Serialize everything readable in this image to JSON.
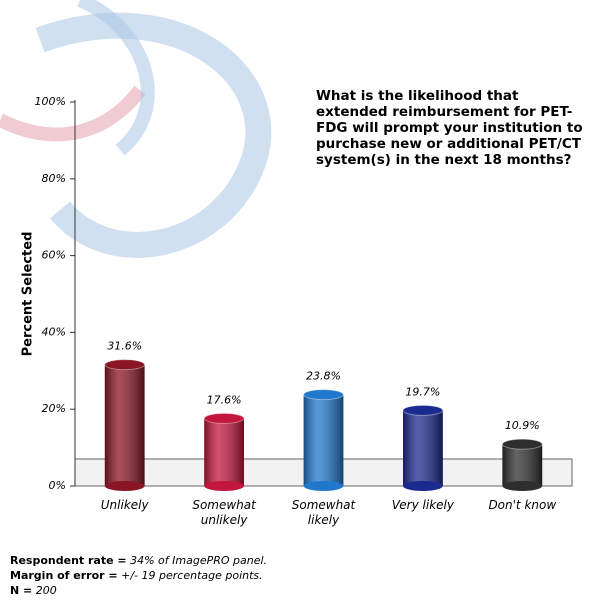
{
  "chart_data": {
    "type": "bar",
    "title": "What is the likelihood that extended reimbursement for PET-FDG will prompt your institution to purchase new or additional PET/CT system(s) in the next 18 months?",
    "y_label": "Percent Selected",
    "categories": [
      "Unlikely",
      "Somewhat unlikely",
      "Somewhat likely",
      "Very likely",
      "Don't know"
    ],
    "values": [
      31.6,
      17.6,
      23.8,
      19.7,
      10.9
    ],
    "value_labels": [
      "31.6%",
      "17.6%",
      "23.8%",
      "19.7%",
      "10.9%"
    ],
    "colors": [
      "#8a1525",
      "#c3153d",
      "#1f78cc",
      "#1b2a8e",
      "#2e2e2e"
    ],
    "ylim": [
      0,
      100
    ],
    "yticks": [
      {
        "value": 0,
        "label": "0%"
      },
      {
        "value": 20,
        "label": "20%"
      },
      {
        "value": 40,
        "label": "40%"
      },
      {
        "value": 60,
        "label": "60%"
      },
      {
        "value": 80,
        "label": "80%"
      },
      {
        "value": 100,
        "label": "100%"
      }
    ],
    "notes": [
      {
        "label": "Respondent rate =",
        "text": "34% of ImagePRO panel."
      },
      {
        "label": "Margin of error =",
        "text": "+/- 19 percentage points."
      },
      {
        "label": "N =",
        "text": "200"
      }
    ]
  }
}
